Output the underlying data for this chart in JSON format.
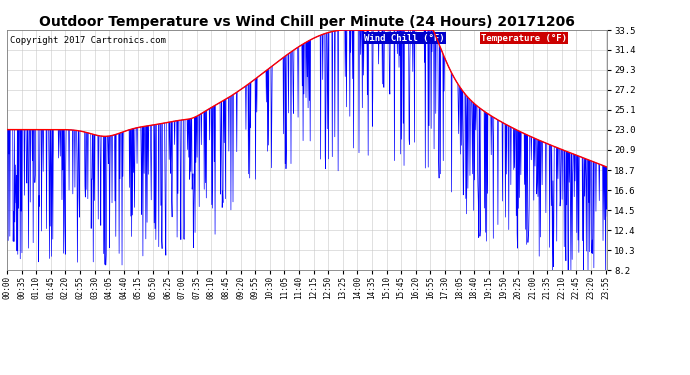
{
  "title": "Outdoor Temperature vs Wind Chill per Minute (24 Hours) 20171206",
  "copyright_text": "Copyright 2017 Cartronics.com",
  "ylabel_right_ticks": [
    8.2,
    10.3,
    12.4,
    14.5,
    16.6,
    18.7,
    20.9,
    23.0,
    25.1,
    27.2,
    29.3,
    31.4,
    33.5
  ],
  "ylim": [
    8.2,
    33.5
  ],
  "xlim": [
    0,
    1439
  ],
  "background_color": "#ffffff",
  "grid_color": "#c8c8c8",
  "title_fontsize": 10,
  "copyright_fontsize": 6.5,
  "tick_fontsize": 5.5,
  "ytick_fontsize": 6.5,
  "temp_color": "#ff0000",
  "windchill_color": "#0000ff",
  "x_tick_interval": 35,
  "total_minutes": 1440,
  "legend_wc_bg": "#0000cc",
  "legend_temp_bg": "#cc0000"
}
